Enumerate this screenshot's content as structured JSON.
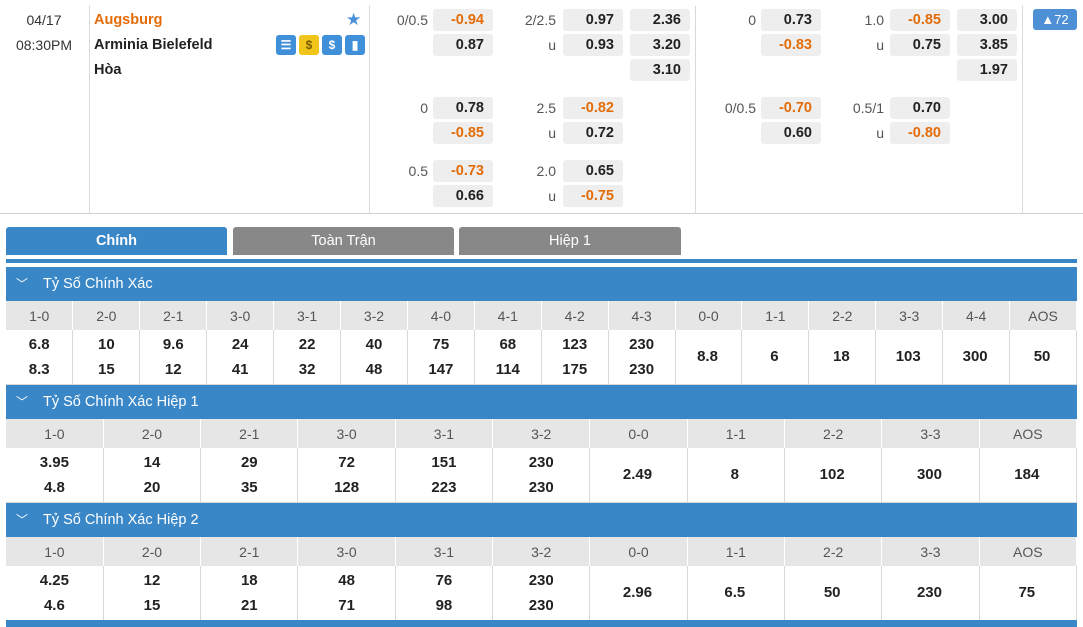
{
  "match": {
    "date": "04/17",
    "time": "08:30PM",
    "home": "Augsburg",
    "away": "Arminia Bielefeld",
    "draw": "Hòa",
    "more_count": "▲72"
  },
  "odds": {
    "row1": {
      "hc1": "0/0.5",
      "o1": "-0.94",
      "o2": "0.87",
      "tl1": "2/2.5",
      "o3": "0.97",
      "o4": "0.93",
      "u1": "u",
      "x1": "2.36",
      "x2": "3.20",
      "x3": "3.10",
      "hc2": "0",
      "o5": "0.73",
      "o6": "-0.83",
      "tl2": "1.0",
      "o7": "-0.85",
      "o8": "0.75",
      "u2": "u",
      "x4": "3.00",
      "x5": "3.85",
      "x6": "1.97"
    },
    "row2": {
      "hc1": "0",
      "o1": "0.78",
      "o2": "-0.85",
      "tl1": "2.5",
      "o3": "-0.82",
      "o4": "0.72",
      "u1": "u",
      "hc2": "0/0.5",
      "o5": "-0.70",
      "o6": "0.60",
      "tl2": "0.5/1",
      "o7": "0.70",
      "o8": "-0.80",
      "u2": "u"
    },
    "row3": {
      "hc1": "0.5",
      "o1": "-0.73",
      "o2": "0.66",
      "tl1": "2.0",
      "o3": "0.65",
      "o4": "-0.75",
      "u1": "u"
    }
  },
  "tabs": [
    "Chính",
    "Toàn Trận",
    "Hiệp 1"
  ],
  "sections": [
    {
      "title": "Tỷ Số Chính Xác",
      "headers": [
        "1-0",
        "2-0",
        "2-1",
        "3-0",
        "3-1",
        "3-2",
        "4-0",
        "4-1",
        "4-2",
        "4-3",
        "0-0",
        "1-1",
        "2-2",
        "3-3",
        "4-4",
        "AOS"
      ],
      "cells": [
        [
          "6.8",
          "8.3"
        ],
        [
          "10",
          "15"
        ],
        [
          "9.6",
          "12"
        ],
        [
          "24",
          "41"
        ],
        [
          "22",
          "32"
        ],
        [
          "40",
          "48"
        ],
        [
          "75",
          "147"
        ],
        [
          "68",
          "114"
        ],
        [
          "123",
          "175"
        ],
        [
          "230",
          "230"
        ],
        [
          "8.8"
        ],
        [
          "6"
        ],
        [
          "18"
        ],
        [
          "103"
        ],
        [
          "300"
        ],
        [
          "50"
        ]
      ]
    },
    {
      "title": "Tỷ Số Chính Xác Hiệp 1",
      "headers": [
        "1-0",
        "2-0",
        "2-1",
        "3-0",
        "3-1",
        "3-2",
        "0-0",
        "1-1",
        "2-2",
        "3-3",
        "AOS"
      ],
      "cells": [
        [
          "3.95",
          "4.8"
        ],
        [
          "14",
          "20"
        ],
        [
          "29",
          "35"
        ],
        [
          "72",
          "128"
        ],
        [
          "151",
          "223"
        ],
        [
          "230",
          "230"
        ],
        [
          "2.49"
        ],
        [
          "8"
        ],
        [
          "102"
        ],
        [
          "300"
        ],
        [
          "184"
        ]
      ]
    },
    {
      "title": "Tỷ Số Chính Xác Hiệp 2",
      "headers": [
        "1-0",
        "2-0",
        "2-1",
        "3-0",
        "3-1",
        "3-2",
        "0-0",
        "1-1",
        "2-2",
        "3-3",
        "AOS"
      ],
      "cells": [
        [
          "4.25",
          "4.6"
        ],
        [
          "12",
          "15"
        ],
        [
          "18",
          "21"
        ],
        [
          "48",
          "71"
        ],
        [
          "76",
          "98"
        ],
        [
          "230",
          "230"
        ],
        [
          "2.96"
        ],
        [
          "6.5"
        ],
        [
          "50"
        ],
        [
          "230"
        ],
        [
          "75"
        ]
      ]
    }
  ],
  "colors": {
    "accent": "#3a87c8",
    "negative": "#e36c09",
    "tab_inactive": "#888888"
  }
}
